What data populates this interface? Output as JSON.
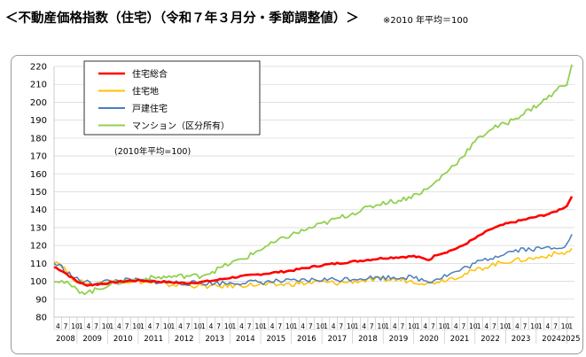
{
  "header": {
    "title": "＜不動産価格指数（住宅）（令和７年３月分・季節調整値）＞",
    "note": "※2010 年平均＝100"
  },
  "chart_data": {
    "type": "line",
    "ylim": [
      80,
      220
    ],
    "yticks": [
      80,
      90,
      100,
      110,
      120,
      130,
      140,
      150,
      160,
      170,
      180,
      190,
      200,
      210,
      220
    ],
    "grid": true,
    "legend_placement": "top-left",
    "base_note": "(2010年平均=100)",
    "x_start": {
      "year": 2008,
      "month": 4
    },
    "x_end": {
      "year": 2025,
      "month": 3
    },
    "month_tick_labels": [
      "4",
      "7",
      "10",
      "1"
    ],
    "year_labels": [
      "2008",
      "2009",
      "2010",
      "2011",
      "2012",
      "2013",
      "2014",
      "2015",
      "2016",
      "2017",
      "2018",
      "2019",
      "2020",
      "2021",
      "2022",
      "2023",
      "2024",
      "2025"
    ],
    "series": [
      {
        "name": "住宅総合",
        "color": "#ff0000",
        "width": 2.6,
        "anchors": [
          [
            2008.25,
            108
          ],
          [
            2008.5,
            106
          ],
          [
            2008.75,
            103
          ],
          [
            2009.0,
            100
          ],
          [
            2009.25,
            98
          ],
          [
            2009.5,
            98
          ],
          [
            2009.75,
            98.5
          ],
          [
            2010.0,
            99
          ],
          [
            2010.5,
            100
          ],
          [
            2011.0,
            100.5
          ],
          [
            2011.5,
            100
          ],
          [
            2012.0,
            99.5
          ],
          [
            2012.5,
            99
          ],
          [
            2013.0,
            99.5
          ],
          [
            2013.5,
            100.5
          ],
          [
            2014.0,
            102
          ],
          [
            2014.5,
            103
          ],
          [
            2015.0,
            104
          ],
          [
            2015.5,
            105
          ],
          [
            2016.0,
            106
          ],
          [
            2016.5,
            107.5
          ],
          [
            2017.0,
            109
          ],
          [
            2017.5,
            110
          ],
          [
            2018.0,
            111
          ],
          [
            2018.5,
            112
          ],
          [
            2019.0,
            113
          ],
          [
            2019.5,
            113.5
          ],
          [
            2020.0,
            114
          ],
          [
            2020.25,
            113
          ],
          [
            2020.5,
            112
          ],
          [
            2020.75,
            115
          ],
          [
            2021.0,
            116
          ],
          [
            2021.5,
            119
          ],
          [
            2022.0,
            124
          ],
          [
            2022.5,
            129
          ],
          [
            2023.0,
            132
          ],
          [
            2023.5,
            134
          ],
          [
            2024.0,
            136
          ],
          [
            2024.5,
            138
          ],
          [
            2024.75,
            140
          ],
          [
            2025.0,
            142
          ],
          [
            2025.17,
            148
          ]
        ]
      },
      {
        "name": "住宅地",
        "color": "#ffc000",
        "width": 1.5,
        "anchors": [
          [
            2008.25,
            112
          ],
          [
            2008.5,
            109
          ],
          [
            2008.75,
            104
          ],
          [
            2009.0,
            100
          ],
          [
            2009.25,
            99
          ],
          [
            2009.5,
            98.5
          ],
          [
            2009.75,
            99
          ],
          [
            2010.0,
            99.5
          ],
          [
            2010.5,
            100
          ],
          [
            2011.0,
            100
          ],
          [
            2011.5,
            99
          ],
          [
            2012.0,
            98
          ],
          [
            2012.5,
            98
          ],
          [
            2013.0,
            97.5
          ],
          [
            2013.5,
            97
          ],
          [
            2014.0,
            97.5
          ],
          [
            2014.5,
            98
          ],
          [
            2015.0,
            98
          ],
          [
            2015.5,
            98
          ],
          [
            2016.0,
            98.5
          ],
          [
            2016.5,
            99
          ],
          [
            2017.0,
            99.5
          ],
          [
            2017.5,
            99
          ],
          [
            2018.0,
            100
          ],
          [
            2018.5,
            100.5
          ],
          [
            2019.0,
            101
          ],
          [
            2019.5,
            101
          ],
          [
            2020.0,
            100
          ],
          [
            2020.5,
            99
          ],
          [
            2021.0,
            101
          ],
          [
            2021.5,
            103
          ],
          [
            2022.0,
            106
          ],
          [
            2022.5,
            109
          ],
          [
            2023.0,
            111
          ],
          [
            2023.5,
            112
          ],
          [
            2024.0,
            113
          ],
          [
            2024.5,
            115
          ],
          [
            2025.0,
            116
          ],
          [
            2025.17,
            118
          ]
        ]
      },
      {
        "name": "戸建住宅",
        "color": "#4a7ebb",
        "width": 1.5,
        "anchors": [
          [
            2008.25,
            110
          ],
          [
            2008.5,
            108
          ],
          [
            2008.75,
            104
          ],
          [
            2009.0,
            101
          ],
          [
            2009.25,
            99.5
          ],
          [
            2009.5,
            99
          ],
          [
            2009.75,
            99.5
          ],
          [
            2010.0,
            100
          ],
          [
            2010.5,
            100.5
          ],
          [
            2011.0,
            100.5
          ],
          [
            2011.5,
            100
          ],
          [
            2012.0,
            99.5
          ],
          [
            2012.5,
            99
          ],
          [
            2013.0,
            99
          ],
          [
            2013.5,
            99
          ],
          [
            2014.0,
            99
          ],
          [
            2014.5,
            99.5
          ],
          [
            2015.0,
            99.5
          ],
          [
            2015.5,
            100
          ],
          [
            2016.0,
            100
          ],
          [
            2016.5,
            100.5
          ],
          [
            2017.0,
            101
          ],
          [
            2017.5,
            101
          ],
          [
            2018.0,
            101.5
          ],
          [
            2018.5,
            102
          ],
          [
            2019.0,
            102
          ],
          [
            2019.5,
            102.5
          ],
          [
            2020.0,
            102
          ],
          [
            2020.5,
            100
          ],
          [
            2021.0,
            103
          ],
          [
            2021.5,
            106
          ],
          [
            2022.0,
            110
          ],
          [
            2022.5,
            113
          ],
          [
            2023.0,
            116
          ],
          [
            2023.5,
            118
          ],
          [
            2024.0,
            118
          ],
          [
            2024.5,
            119
          ],
          [
            2025.0,
            120
          ],
          [
            2025.17,
            127
          ]
        ]
      },
      {
        "name": "マンション（区分所有）",
        "color": "#92d050",
        "width": 1.8,
        "anchors": [
          [
            2008.25,
            101
          ],
          [
            2008.5,
            100
          ],
          [
            2008.75,
            98
          ],
          [
            2009.0,
            95
          ],
          [
            2009.25,
            94
          ],
          [
            2009.5,
            94.5
          ],
          [
            2009.75,
            96
          ],
          [
            2010.0,
            98
          ],
          [
            2010.5,
            100
          ],
          [
            2011.0,
            101
          ],
          [
            2011.5,
            102
          ],
          [
            2012.0,
            102.5
          ],
          [
            2012.5,
            103
          ],
          [
            2013.0,
            103
          ],
          [
            2013.5,
            106
          ],
          [
            2014.0,
            110
          ],
          [
            2014.5,
            113
          ],
          [
            2015.0,
            118
          ],
          [
            2015.5,
            122
          ],
          [
            2016.0,
            126
          ],
          [
            2016.5,
            129
          ],
          [
            2017.0,
            132
          ],
          [
            2017.5,
            135
          ],
          [
            2018.0,
            138
          ],
          [
            2018.5,
            141
          ],
          [
            2019.0,
            144
          ],
          [
            2019.5,
            145
          ],
          [
            2020.0,
            148
          ],
          [
            2020.5,
            152
          ],
          [
            2021.0,
            160
          ],
          [
            2021.5,
            168
          ],
          [
            2022.0,
            178
          ],
          [
            2022.5,
            185
          ],
          [
            2023.0,
            188
          ],
          [
            2023.5,
            193
          ],
          [
            2024.0,
            198
          ],
          [
            2024.5,
            204
          ],
          [
            2024.75,
            208
          ],
          [
            2025.0,
            211
          ],
          [
            2025.17,
            220
          ]
        ]
      }
    ]
  }
}
